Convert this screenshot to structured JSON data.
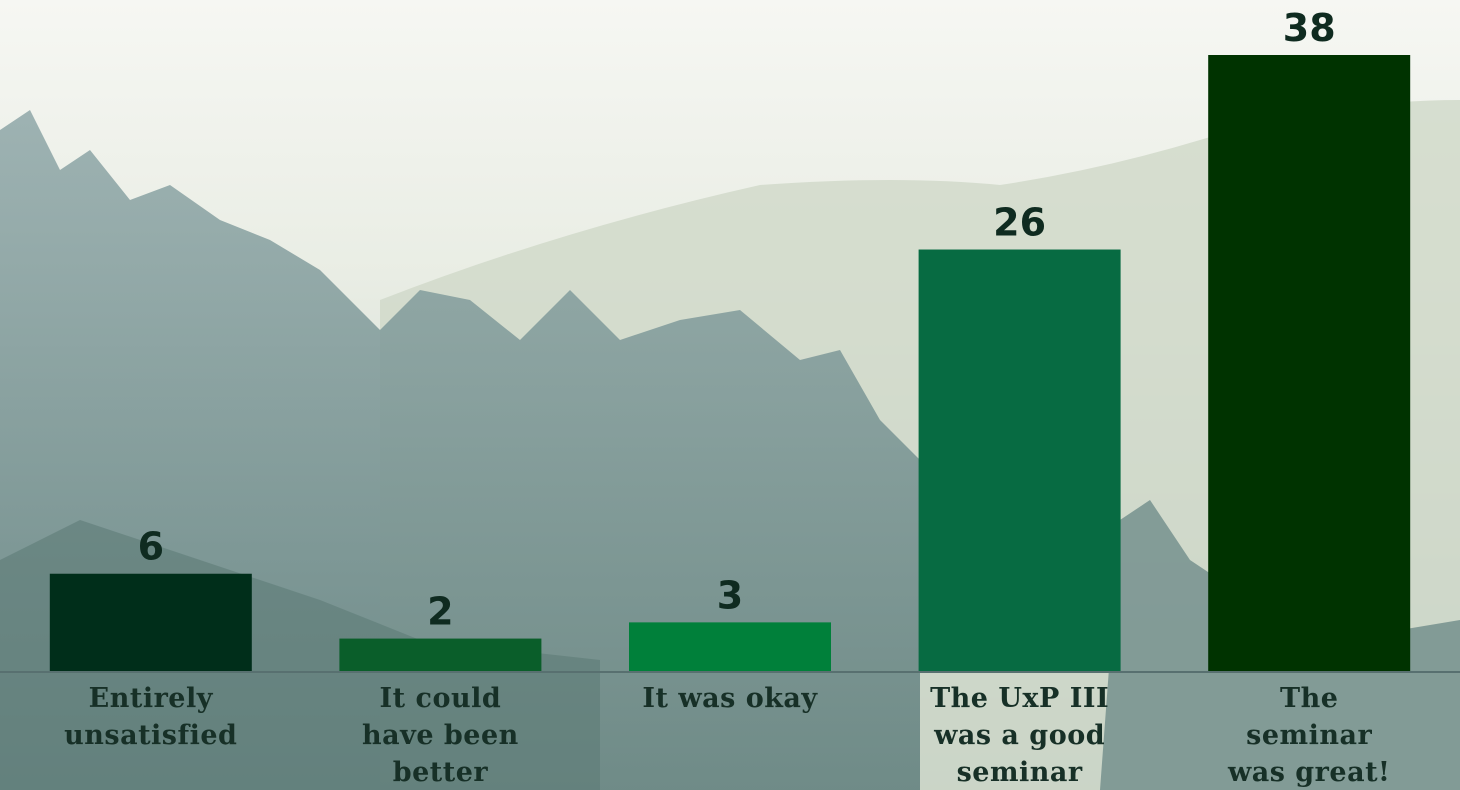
{
  "chart_data": {
    "type": "bar",
    "categories": [
      "Entirely\nunsatisfied",
      "It could\nhave been\nbetter",
      "It was okay",
      "The UxP III\nwas a good\nseminar",
      "The\nseminar\nwas great!"
    ],
    "values": [
      6,
      2,
      3,
      26,
      38
    ],
    "colors": [
      "#002e1a",
      "#0a5e2a",
      "#00803a",
      "#076b42",
      "#003300"
    ]
  }
}
